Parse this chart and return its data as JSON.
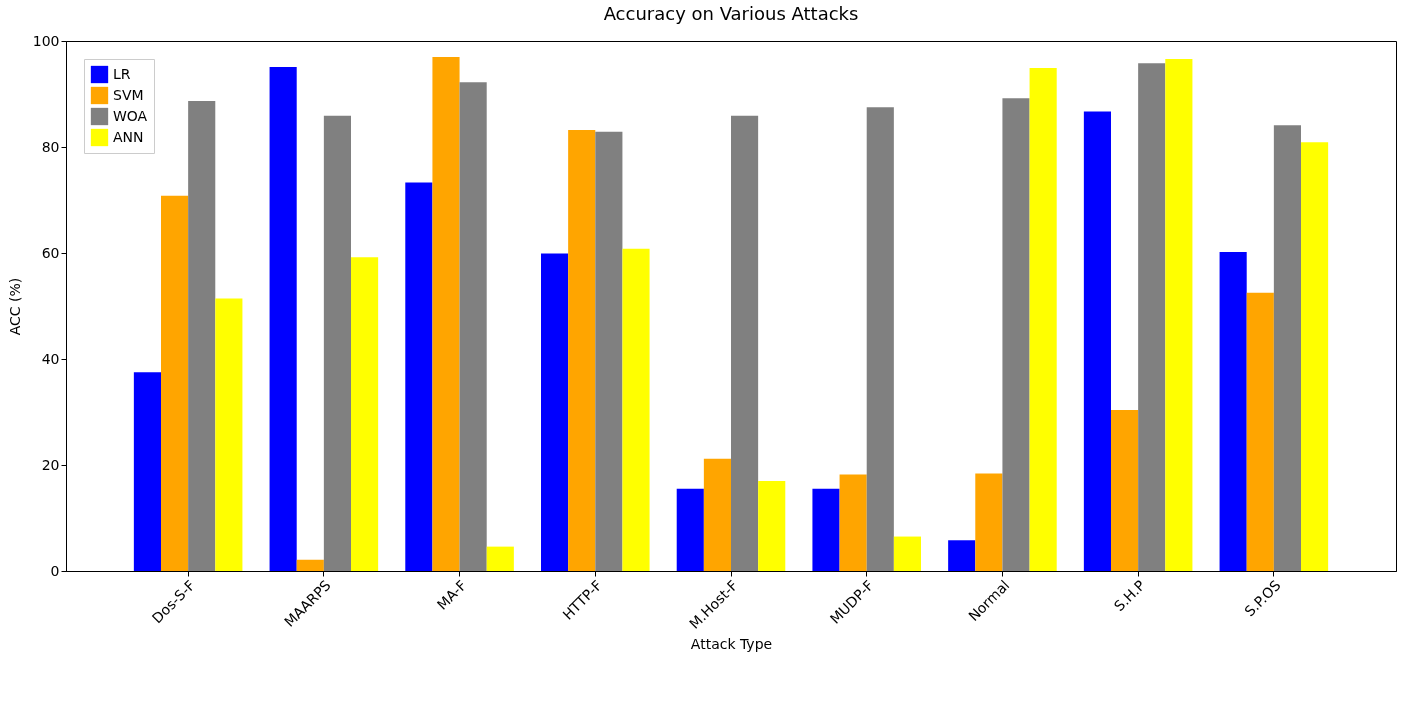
{
  "chart_data": {
    "type": "bar",
    "title": "Accuracy on Various Attacks",
    "xlabel": "Attack Type",
    "ylabel": "ACC (%)",
    "categories": [
      "Dos-S-F",
      "MAARPS",
      "MA-F",
      "HTTP-F",
      "M.Host-F",
      "MUDP-F",
      "Normal",
      "S.H.P",
      "S.P.OS"
    ],
    "series": [
      {
        "name": "LR",
        "color": "#0000ff",
        "values": [
          37.5,
          95.1,
          73.3,
          59.9,
          15.5,
          15.5,
          5.8,
          86.7,
          60.2
        ]
      },
      {
        "name": "SVM",
        "color": "#ffa500",
        "values": [
          70.8,
          2.1,
          97.0,
          83.2,
          21.2,
          18.2,
          18.4,
          30.4,
          52.5
        ]
      },
      {
        "name": "WOA",
        "color": "#808080",
        "values": [
          88.7,
          85.9,
          92.2,
          82.9,
          85.9,
          87.5,
          89.2,
          95.8,
          84.1
        ]
      },
      {
        "name": "ANN",
        "color": "#ffff00",
        "values": [
          51.4,
          59.2,
          4.6,
          60.8,
          17.0,
          6.5,
          94.9,
          96.6,
          80.9
        ]
      }
    ],
    "ylim": [
      0,
      100
    ],
    "yticks": [
      0,
      20,
      40,
      60,
      80,
      100
    ],
    "grid": false,
    "legend": "top left"
  }
}
